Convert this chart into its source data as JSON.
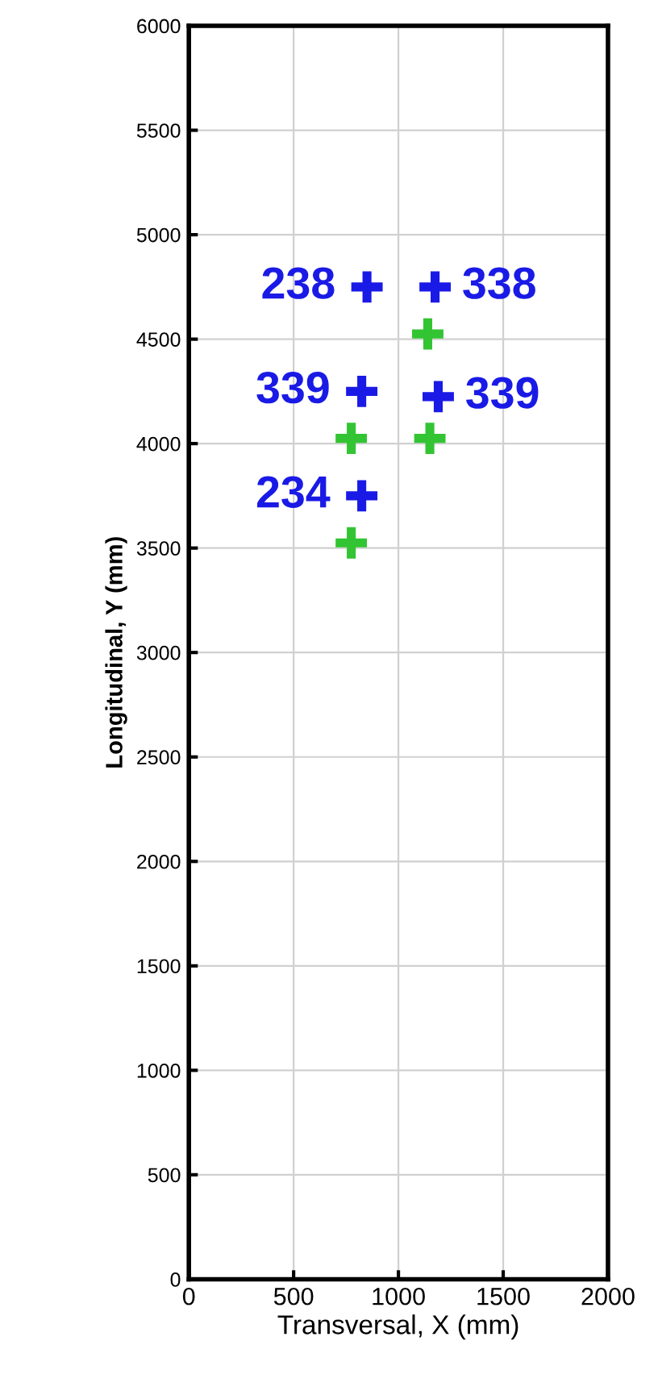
{
  "chart_data": {
    "type": "scatter",
    "xlabel": "Transversal, X (mm)",
    "ylabel": "Longitudinal, Y (mm)",
    "series": [
      {
        "color": "#1a1ae6",
        "x": [
          850,
          1175,
          825,
          1190,
          825
        ],
        "values": [
          4750,
          4750,
          4250,
          4225,
          3750
        ]
      },
      {
        "color": "#33c433",
        "x": [
          1140,
          775,
          1150,
          775
        ],
        "values": [
          4525,
          4025,
          4025,
          3525
        ]
      }
    ],
    "annotations": [
      {
        "text": "238",
        "x": 850,
        "y": 4750
      },
      {
        "text": "338",
        "x": 1175,
        "y": 4750
      },
      {
        "text": "339",
        "x": 825,
        "y": 4250
      },
      {
        "text": "339",
        "x": 1190,
        "y": 4225
      },
      {
        "text": "234",
        "x": 825,
        "y": 3750
      }
    ],
    "xlim": [
      0,
      2000
    ],
    "xticks": [
      0,
      500,
      1000,
      1500,
      2000
    ],
    "ylim": [
      0,
      6000
    ],
    "yticks": [
      0,
      500,
      1000,
      1500,
      2000,
      2500,
      3000,
      3500,
      4000,
      4500,
      5000,
      5500,
      6000
    ],
    "grid": true,
    "marker": "cross",
    "legend": false
  }
}
